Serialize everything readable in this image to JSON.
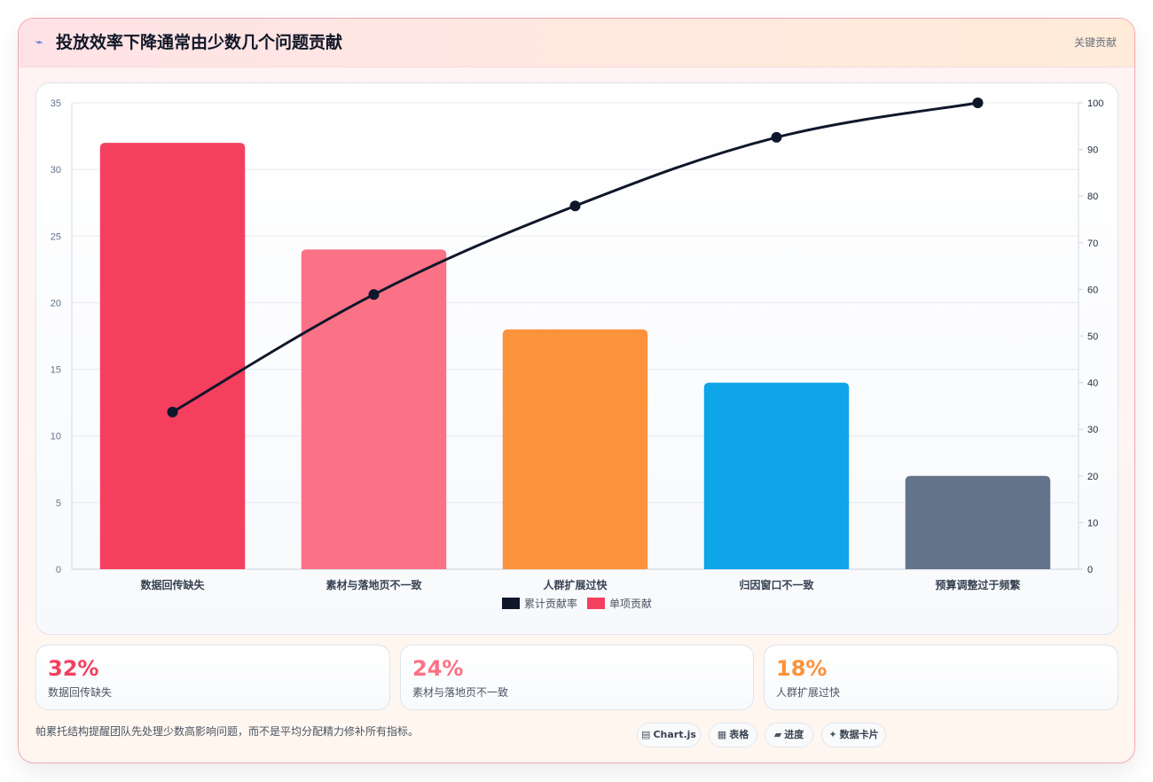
{
  "header": {
    "icon": "lightning-icon",
    "title": "投放效率下降通常由少数几个问题贡献",
    "tag": "关键贡献"
  },
  "chart_data": {
    "type": "bar",
    "categories": [
      "数据回传缺失",
      "素材与落地页不一致",
      "人群扩展过快",
      "归因窗口不一致",
      "预算调整过于频繁"
    ],
    "series": [
      {
        "name": "单项贡献",
        "type": "bar",
        "axis": "left",
        "values": [
          32,
          24,
          18,
          14,
          7
        ],
        "colors": [
          "#f43f5e",
          "#fb7185",
          "#fb923c",
          "#0ea5e9",
          "#64748b"
        ]
      },
      {
        "name": "累计贡献率",
        "type": "line",
        "axis": "right",
        "values": [
          33.7,
          58.9,
          77.9,
          92.6,
          100
        ],
        "color": "#0f172a"
      }
    ],
    "y_left": {
      "range": [
        0,
        35
      ],
      "ticks": [
        0,
        5,
        10,
        15,
        20,
        25,
        30,
        35
      ]
    },
    "y_right": {
      "range": [
        0,
        100
      ],
      "ticks": [
        0,
        10,
        20,
        30,
        40,
        50,
        60,
        70,
        80,
        90,
        100
      ]
    },
    "legend": {
      "position": "bottom",
      "items": [
        {
          "label": "累计贡献率",
          "color": "#0f172a"
        },
        {
          "label": "单项贡献",
          "color": "#f43f5e"
        }
      ]
    },
    "grid": true
  },
  "stats": [
    {
      "value": "32%",
      "label": "数据回传缺失",
      "color": "#f43f5e"
    },
    {
      "value": "24%",
      "label": "素材与落地页不一致",
      "color": "#fb7185"
    },
    {
      "value": "18%",
      "label": "人群扩展过快",
      "color": "#fb923c"
    }
  ],
  "footer": {
    "note": "帕累托结构提醒团队先处理少数高影响问题，而不是平均分配精力修补所有指标。",
    "pills": [
      {
        "glyph": "▤",
        "label": "Chart.js",
        "icon": "chart-icon"
      },
      {
        "glyph": "▦",
        "label": "表格",
        "icon": "table-icon"
      },
      {
        "glyph": "▰",
        "label": "进度",
        "icon": "progress-icon"
      },
      {
        "glyph": "✦",
        "label": "数据卡片",
        "icon": "sparkle-icon"
      }
    ]
  }
}
